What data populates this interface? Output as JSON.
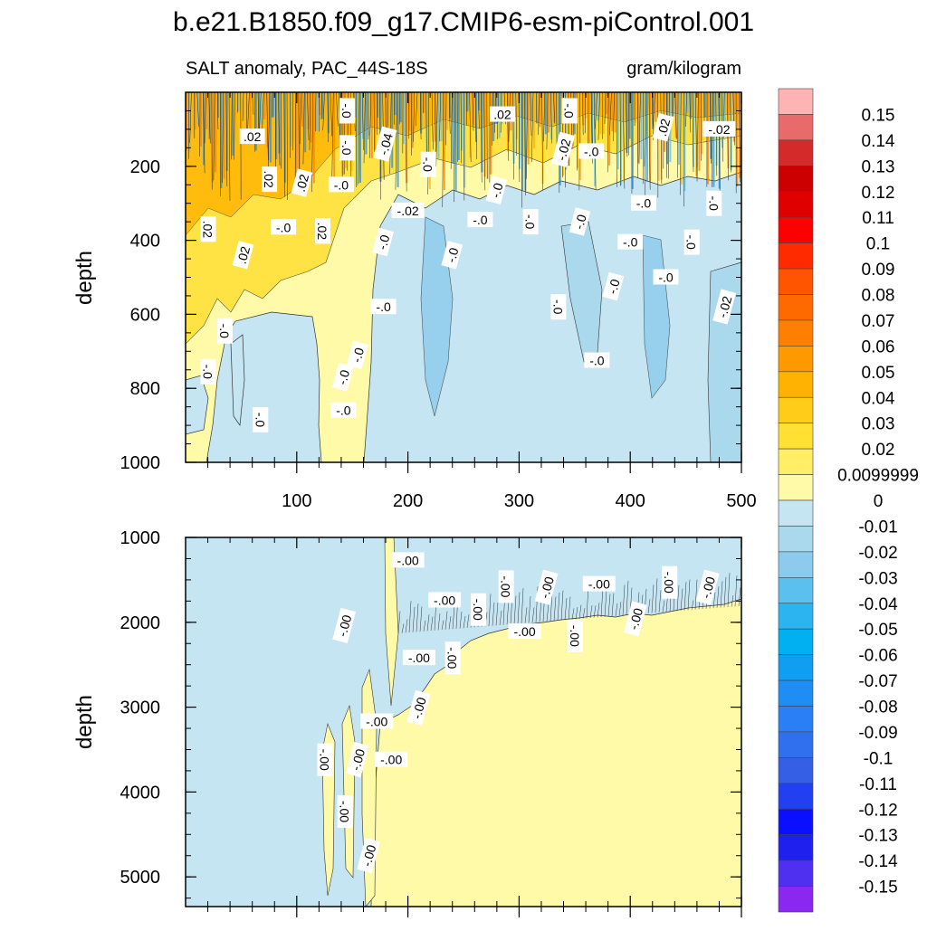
{
  "chart_data": {
    "type": "heatmap",
    "title": "b.e21.B1850.f09_g17.CMIP6-esm-piControl.001",
    "left_subtitle": "SALT anomaly, PAC_44S-18S",
    "right_subtitle": "gram/kilogram",
    "xlabel": "",
    "ylabel": "depth",
    "xlim": [
      0,
      500
    ],
    "x_ticks": [
      100,
      200,
      300,
      400,
      500
    ],
    "panels": [
      {
        "name": "upper",
        "ylim": [
          0,
          1000
        ],
        "y_ticks": [
          200,
          400,
          600,
          800,
          1000
        ],
        "contour_labels": [
          {
            "text": ".02",
            "x": 60,
            "y": 120
          },
          {
            "text": "-.0",
            "x": 145,
            "y": 50
          },
          {
            "text": "-.04",
            "x": 180,
            "y": 140
          },
          {
            "text": ".02",
            "x": 285,
            "y": 60
          },
          {
            "text": "-.0",
            "x": 345,
            "y": 50
          },
          {
            "text": ".02",
            "x": 430,
            "y": 95
          },
          {
            "text": "-.02",
            "x": 480,
            "y": 100
          },
          {
            "text": "-.0",
            "x": 145,
            "y": 150
          },
          {
            "text": "-.02",
            "x": 340,
            "y": 155
          },
          {
            "text": "-.0",
            "x": 365,
            "y": 160
          },
          {
            "text": ".02",
            "x": 75,
            "y": 235
          },
          {
            "text": ".02",
            "x": 105,
            "y": 245
          },
          {
            "text": "-.0",
            "x": 140,
            "y": 250
          },
          {
            "text": "-.0",
            "x": 218,
            "y": 195
          },
          {
            "text": "-.0",
            "x": 280,
            "y": 265
          },
          {
            "text": "-.02",
            "x": 200,
            "y": 320
          },
          {
            "text": ".02",
            "x": 20,
            "y": 370
          },
          {
            "text": ".02",
            "x": 52,
            "y": 440
          },
          {
            "text": "-.0",
            "x": 88,
            "y": 365
          },
          {
            "text": ".02",
            "x": 123,
            "y": 375
          },
          {
            "text": "-.0",
            "x": 178,
            "y": 405
          },
          {
            "text": "-.0",
            "x": 265,
            "y": 345
          },
          {
            "text": "-.0",
            "x": 310,
            "y": 350
          },
          {
            "text": "-.0",
            "x": 355,
            "y": 350
          },
          {
            "text": "-.0",
            "x": 412,
            "y": 300
          },
          {
            "text": "-.0",
            "x": 475,
            "y": 300
          },
          {
            "text": "-.0",
            "x": 240,
            "y": 440
          },
          {
            "text": "-.0",
            "x": 400,
            "y": 405
          },
          {
            "text": "-.0",
            "x": 455,
            "y": 405
          },
          {
            "text": "-.0",
            "x": 385,
            "y": 525
          },
          {
            "text": "-.0",
            "x": 432,
            "y": 500
          },
          {
            "text": "-.0",
            "x": 335,
            "y": 580
          },
          {
            "text": "-.02",
            "x": 485,
            "y": 580
          },
          {
            "text": "-.0",
            "x": 178,
            "y": 580
          },
          {
            "text": "-.0",
            "x": 35,
            "y": 645
          },
          {
            "text": "-.0",
            "x": 155,
            "y": 710
          },
          {
            "text": "-.0",
            "x": 370,
            "y": 725
          },
          {
            "text": "-.0",
            "x": 20,
            "y": 755
          },
          {
            "text": "-.0",
            "x": 142,
            "y": 770
          },
          {
            "text": "-.0",
            "x": 142,
            "y": 860
          },
          {
            "text": "-.0",
            "x": 67,
            "y": 885
          }
        ]
      },
      {
        "name": "lower",
        "ylim": [
          1000,
          5350
        ],
        "y_ticks": [
          1000,
          2000,
          3000,
          4000,
          5000
        ],
        "contour_labels": [
          {
            "text": "-.00",
            "x": 200,
            "y": 1270
          },
          {
            "text": "-.00",
            "x": 288,
            "y": 1580
          },
          {
            "text": "-.00",
            "x": 325,
            "y": 1590
          },
          {
            "text": "-.00",
            "x": 372,
            "y": 1550
          },
          {
            "text": "-.00",
            "x": 435,
            "y": 1530
          },
          {
            "text": "-.00",
            "x": 470,
            "y": 1590
          },
          {
            "text": "-.00",
            "x": 233,
            "y": 1740
          },
          {
            "text": "-.00",
            "x": 263,
            "y": 1850
          },
          {
            "text": "-.00",
            "x": 405,
            "y": 1960
          },
          {
            "text": "-.00",
            "x": 305,
            "y": 2110
          },
          {
            "text": "-.00",
            "x": 350,
            "y": 2160
          },
          {
            "text": "-.00",
            "x": 143,
            "y": 2040
          },
          {
            "text": "-.00",
            "x": 210,
            "y": 2420
          },
          {
            "text": "-.00",
            "x": 240,
            "y": 2420
          },
          {
            "text": "-.00",
            "x": 210,
            "y": 3010
          },
          {
            "text": "-.00",
            "x": 172,
            "y": 3170
          },
          {
            "text": "-.00",
            "x": 125,
            "y": 3620
          },
          {
            "text": "-.00",
            "x": 155,
            "y": 3620
          },
          {
            "text": "-.00",
            "x": 185,
            "y": 3620
          },
          {
            "text": "-.00",
            "x": 143,
            "y": 4230
          },
          {
            "text": "-.00",
            "x": 165,
            "y": 4750
          }
        ]
      }
    ],
    "colorbar": {
      "labels": [
        "0.15",
        "0.14",
        "0.13",
        "0.12",
        "0.11",
        "0.1",
        "0.09",
        "0.08",
        "0.07",
        "0.06",
        "0.05",
        "0.04",
        "0.03",
        "0.02",
        "0.0099999",
        "0",
        "-0.01",
        "-0.02",
        "-0.03",
        "-0.04",
        "-0.05",
        "-0.06",
        "-0.07",
        "-0.08",
        "-0.09",
        "-0.1",
        "-0.11",
        "-0.12",
        "-0.13",
        "-0.14",
        "-0.15"
      ],
      "colors": [
        "#ffb3b3",
        "#e86a6a",
        "#d42a2a",
        "#cc0000",
        "#e00000",
        "#ff0000",
        "#ff2a00",
        "#ff5500",
        "#ff6a00",
        "#ff8000",
        "#ff9900",
        "#ffb300",
        "#ffcc1a",
        "#ffe033",
        "#ffee66",
        "#fffaa8",
        "#c6e5f2",
        "#aad8ec",
        "#8ccbeb",
        "#5cc0ee",
        "#2bb4ef",
        "#00b0f0",
        "#109ef2",
        "#1e8ef4",
        "#2a7ff4",
        "#3070ee",
        "#3560e6",
        "#2340f0",
        "#0a10ff",
        "#2020ee",
        "#5030f0",
        "#8a28f0"
      ]
    }
  }
}
